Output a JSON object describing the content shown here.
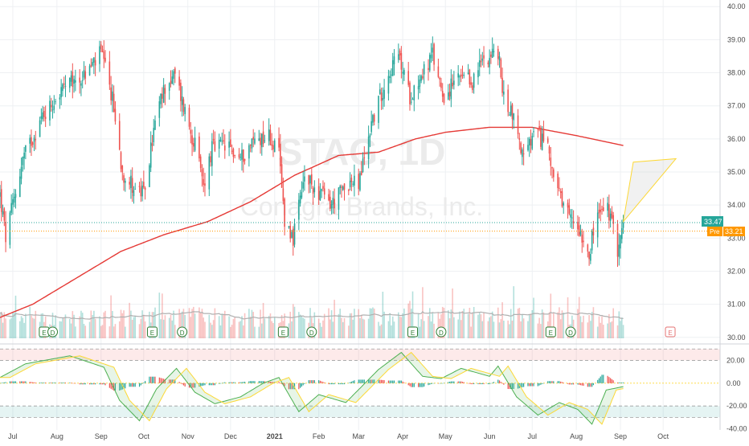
{
  "colors": {
    "up": "#26a69a",
    "down": "#ef5350",
    "ma": "#e53935",
    "vol_avg": "#b0b0b0",
    "last_price_bg": "#26a69a",
    "pre_price_bg": "#ff9800",
    "osc_up": "#26a69a",
    "osc_down": "#ef5350",
    "osc_signal_a": "#4caf50",
    "osc_signal_b": "#fdd835",
    "projection": "#fdd835",
    "grid": "#eef0f3",
    "axis_text": "#4a4a4a",
    "watermark": "#ebebeb"
  },
  "watermark": {
    "symbol": "STAG, 1D",
    "name": "Conagra Brands, Inc."
  },
  "price_labels": {
    "last": "33.47",
    "pre_tag": "Pre",
    "pre_value": "33.21"
  },
  "event_markers": [
    {
      "label": "E",
      "date": "2020-07-23"
    },
    {
      "label": "D",
      "date": "2020-07-29"
    },
    {
      "label": "E",
      "date": "2020-10-07"
    },
    {
      "label": "D",
      "date": "2020-10-28"
    },
    {
      "label": "E",
      "date": "2021-01-07"
    },
    {
      "label": "D",
      "date": "2021-01-27"
    },
    {
      "label": "E",
      "date": "2021-04-08"
    },
    {
      "label": "D",
      "date": "2021-04-28"
    },
    {
      "label": "E",
      "date": "2021-07-14"
    },
    {
      "label": "D",
      "date": "2021-07-28"
    },
    {
      "label": "E",
      "date": "2021-10-06",
      "future": true
    }
  ],
  "chart_data": [
    {
      "type": "candlestick",
      "title": "",
      "x_start": "2020-06-22",
      "x_end": "2021-11-10",
      "xticks": [
        "Jul",
        "Aug",
        "Sep",
        "Oct",
        "Nov",
        "Dec",
        "2021",
        "Feb",
        "Mar",
        "Apr",
        "May",
        "Jun",
        "Jul",
        "Aug",
        "Sep",
        "Oct"
      ],
      "xtick_dates": [
        "2020-07-01",
        "2020-08-01",
        "2020-09-01",
        "2020-10-01",
        "2020-11-01",
        "2020-12-01",
        "2021-01-01",
        "2021-02-01",
        "2021-03-01",
        "2021-04-01",
        "2021-05-01",
        "2021-06-01",
        "2021-07-01",
        "2021-08-01",
        "2021-09-01",
        "2021-10-01"
      ],
      "ylim": [
        29.8,
        40.2
      ],
      "yticks": [
        "40.00",
        "39.00",
        "38.00",
        "37.00",
        "36.00",
        "35.00",
        "34.00",
        "33.00",
        "32.00",
        "31.00",
        "30.00"
      ],
      "close_anchors": [
        [
          "2020-06-22",
          34.3
        ],
        [
          "2020-06-26",
          33.0
        ],
        [
          "2020-07-08",
          35.4
        ],
        [
          "2020-07-22",
          36.7
        ],
        [
          "2020-08-05",
          37.5
        ],
        [
          "2020-08-20",
          37.9
        ],
        [
          "2020-09-01",
          38.6
        ],
        [
          "2020-09-09",
          37.2
        ],
        [
          "2020-09-16",
          35.0
        ],
        [
          "2020-09-25",
          34.5
        ],
        [
          "2020-10-01",
          34.3
        ],
        [
          "2020-10-09",
          36.5
        ],
        [
          "2020-10-16",
          37.6
        ],
        [
          "2020-10-23",
          37.9
        ],
        [
          "2020-10-29",
          37.0
        ],
        [
          "2020-11-06",
          35.8
        ],
        [
          "2020-11-12",
          34.6
        ],
        [
          "2020-11-18",
          35.7
        ],
        [
          "2020-11-27",
          35.8
        ],
        [
          "2020-12-08",
          35.4
        ],
        [
          "2020-12-18",
          36.0
        ],
        [
          "2020-12-28",
          36.1
        ],
        [
          "2021-01-04",
          35.5
        ],
        [
          "2021-01-08",
          33.6
        ],
        [
          "2021-01-14",
          33.0
        ],
        [
          "2021-01-22",
          34.8
        ],
        [
          "2021-02-01",
          34.4
        ],
        [
          "2021-02-10",
          34.0
        ],
        [
          "2021-02-22",
          34.7
        ],
        [
          "2021-03-01",
          34.6
        ],
        [
          "2021-03-10",
          36.5
        ],
        [
          "2021-03-22",
          38.0
        ],
        [
          "2021-03-29",
          38.5
        ],
        [
          "2021-04-06",
          37.3
        ],
        [
          "2021-04-15",
          38.0
        ],
        [
          "2021-04-22",
          38.5
        ],
        [
          "2021-04-30",
          37.3
        ],
        [
          "2021-05-10",
          37.8
        ],
        [
          "2021-05-20",
          37.7
        ],
        [
          "2021-05-28",
          38.5
        ],
        [
          "2021-06-07",
          38.6
        ],
        [
          "2021-06-11",
          37.2
        ],
        [
          "2021-06-17",
          36.8
        ],
        [
          "2021-06-25",
          35.4
        ],
        [
          "2021-07-02",
          36.1
        ],
        [
          "2021-07-12",
          35.9
        ],
        [
          "2021-07-16",
          34.9
        ],
        [
          "2021-07-23",
          33.8
        ],
        [
          "2021-08-02",
          33.4
        ],
        [
          "2021-08-10",
          32.6
        ],
        [
          "2021-08-16",
          33.7
        ],
        [
          "2021-08-23",
          33.9
        ],
        [
          "2021-08-30",
          32.7
        ],
        [
          "2021-09-03",
          33.47
        ]
      ],
      "series": [
        {
          "name": "",
          "type": "line",
          "points": [
            [
              "2020-06-22",
              30.6
            ],
            [
              "2020-07-15",
              31.0
            ],
            [
              "2020-08-15",
              31.8
            ],
            [
              "2020-09-15",
              32.6
            ],
            [
              "2020-10-15",
              33.1
            ],
            [
              "2020-11-15",
              33.5
            ],
            [
              "2020-12-15",
              34.1
            ],
            [
              "2021-01-15",
              34.9
            ],
            [
              "2021-02-15",
              35.5
            ],
            [
              "2021-03-15",
              35.6
            ],
            [
              "2021-04-10",
              36.0
            ],
            [
              "2021-05-01",
              36.2
            ],
            [
              "2021-06-01",
              36.35
            ],
            [
              "2021-07-01",
              36.35
            ],
            [
              "2021-08-01",
              36.1
            ],
            [
              "2021-09-03",
              35.8
            ]
          ]
        }
      ],
      "projection_triangle": [
        [
          "2021-09-03",
          33.5
        ],
        [
          "2021-09-10",
          35.3
        ],
        [
          "2021-10-10",
          35.4
        ]
      ]
    },
    {
      "type": "bar",
      "title": "",
      "note": "volume (relative), up/down colored",
      "x_start": "2020-06-22",
      "x_end": "2021-09-03"
    },
    {
      "type": "area",
      "title": "",
      "ylim": [
        -41,
        33
      ],
      "yticks": [
        "20.00",
        "0.00",
        "-20.00",
        "-40.00"
      ],
      "bands": [
        20,
        30,
        -20,
        -30
      ],
      "osc_anchors": [
        [
          "2020-06-22",
          5
        ],
        [
          "2020-07-10",
          17
        ],
        [
          "2020-08-10",
          24
        ],
        [
          "2020-09-03",
          14
        ],
        [
          "2020-09-14",
          -15
        ],
        [
          "2020-09-28",
          -33
        ],
        [
          "2020-10-10",
          -5
        ],
        [
          "2020-10-24",
          13
        ],
        [
          "2020-11-06",
          -8
        ],
        [
          "2020-11-20",
          -18
        ],
        [
          "2020-12-08",
          -12
        ],
        [
          "2020-12-24",
          0
        ],
        [
          "2021-01-04",
          5
        ],
        [
          "2021-01-18",
          -25
        ],
        [
          "2021-02-01",
          -10
        ],
        [
          "2021-02-20",
          -17
        ],
        [
          "2021-03-15",
          12
        ],
        [
          "2021-03-31",
          27
        ],
        [
          "2021-04-15",
          6
        ],
        [
          "2021-04-28",
          4
        ],
        [
          "2021-05-12",
          13
        ],
        [
          "2021-06-01",
          6
        ],
        [
          "2021-06-07",
          15
        ],
        [
          "2021-06-20",
          -12
        ],
        [
          "2021-07-05",
          -28
        ],
        [
          "2021-07-20",
          -17
        ],
        [
          "2021-08-02",
          -23
        ],
        [
          "2021-08-12",
          -36
        ],
        [
          "2021-08-22",
          -6
        ],
        [
          "2021-09-03",
          -3
        ]
      ]
    }
  ]
}
